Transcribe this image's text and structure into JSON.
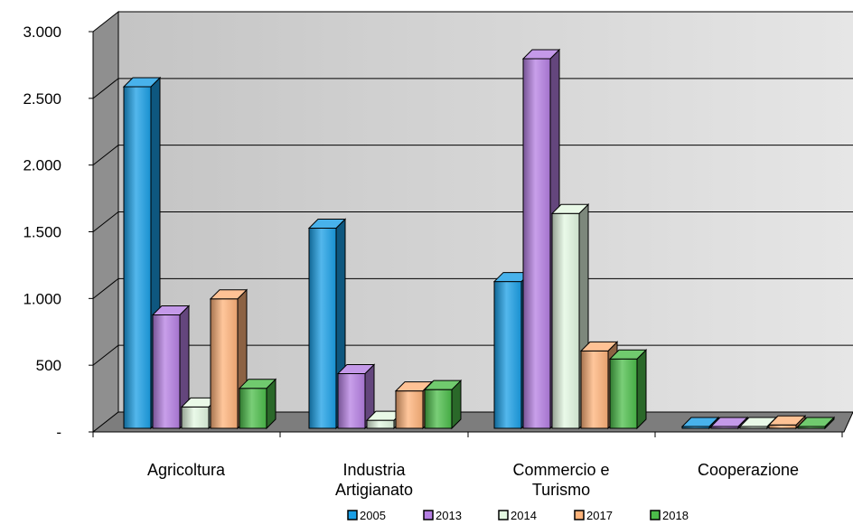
{
  "chart_data": {
    "type": "bar",
    "title": "",
    "xlabel": "",
    "ylabel": "",
    "categories": [
      [
        "Agricoltura"
      ],
      [
        "Industria",
        "Artigianato"
      ],
      [
        "Commercio e",
        "Turismo"
      ],
      [
        "Cooperazione"
      ]
    ],
    "y_ticks": [
      {
        "value": 0,
        "label": "-"
      },
      {
        "value": 500,
        "label": "500"
      },
      {
        "value": 1000,
        "label": "1.000"
      },
      {
        "value": 1500,
        "label": "1.500"
      },
      {
        "value": 2000,
        "label": "2.000"
      },
      {
        "value": 2500,
        "label": "2.500"
      },
      {
        "value": 3000,
        "label": "3.000"
      }
    ],
    "ylim": [
      0,
      3000
    ],
    "grid": true,
    "legend_position": "bottom",
    "series": [
      {
        "name": "2005",
        "color": "#1a9fe6",
        "values": [
          2560,
          1500,
          1100,
          10
        ]
      },
      {
        "name": "2013",
        "color": "#b57fe3",
        "values": [
          850,
          410,
          2770,
          10
        ]
      },
      {
        "name": "2014",
        "color": "#e3f8e1",
        "values": [
          160,
          60,
          1610,
          10
        ]
      },
      {
        "name": "2017",
        "color": "#ffb37a",
        "values": [
          970,
          280,
          580,
          25
        ]
      },
      {
        "name": "2018",
        "color": "#4cbd4a",
        "values": [
          300,
          290,
          520,
          10
        ]
      }
    ]
  }
}
